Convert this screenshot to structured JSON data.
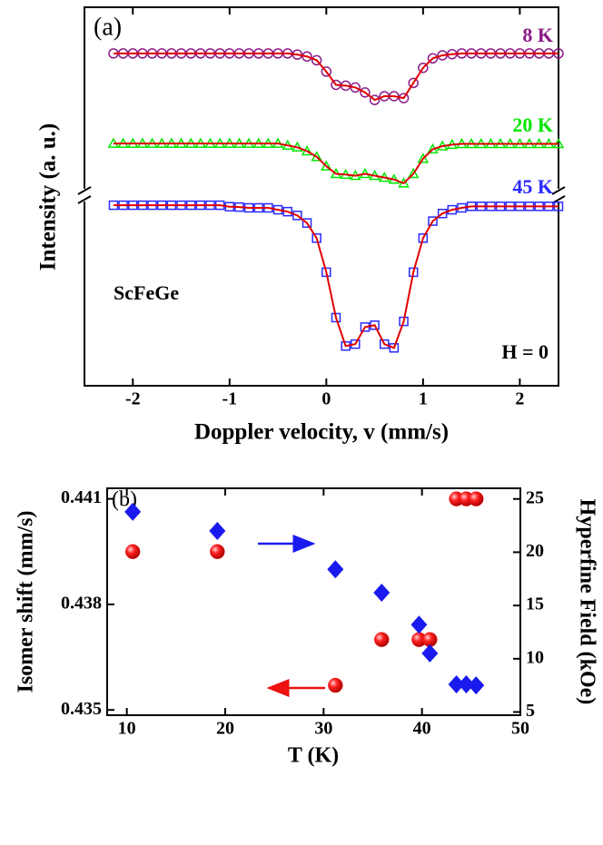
{
  "chart_data": [
    {
      "type": "line",
      "title": "(a)",
      "xlabel": "Doppler velocity, v (mm/s)",
      "ylabel": "Intensity (a. u.)",
      "x": [
        -2.2,
        -2.1,
        -2.0,
        -1.9,
        -1.8,
        -1.7,
        -1.6,
        -1.5,
        -1.4,
        -1.3,
        -1.2,
        -1.1,
        -1.0,
        -0.9,
        -0.8,
        -0.7,
        -0.6,
        -0.5,
        -0.4,
        -0.3,
        -0.2,
        -0.1,
        0.0,
        0.1,
        0.2,
        0.3,
        0.4,
        0.5,
        0.6,
        0.7,
        0.8,
        0.9,
        1.0,
        1.1,
        1.2,
        1.3,
        1.4,
        1.5,
        1.6,
        1.7,
        1.8,
        1.9,
        2.0,
        2.1,
        2.2,
        2.3,
        2.4
      ],
      "series": [
        {
          "name": "8 K",
          "color": "#8b1a89",
          "marker": "circle",
          "values": [
            87.8,
            87.8,
            87.8,
            87.8,
            87.8,
            87.8,
            87.8,
            87.8,
            87.8,
            87.8,
            87.8,
            87.8,
            87.8,
            87.8,
            87.8,
            87.8,
            87.8,
            87.8,
            87.8,
            87.5,
            87,
            86,
            83,
            79.5,
            79.3,
            78.8,
            77.5,
            75.5,
            76.5,
            76.5,
            76,
            80,
            84,
            86.5,
            87.3,
            87.6,
            87.8,
            87.8,
            87.8,
            87.8,
            87.8,
            87.8,
            87.8,
            87.8,
            87.8,
            87.8,
            87.8
          ]
        },
        {
          "name": "20 K",
          "color": "#00e600",
          "marker": "triangle",
          "values": [
            64,
            64,
            64,
            64,
            64,
            64,
            64,
            64,
            64,
            64,
            64,
            64,
            64,
            64,
            64,
            64,
            64,
            64,
            63.5,
            63,
            62,
            60.5,
            58,
            56,
            55.8,
            55.5,
            56,
            55.5,
            55,
            54.5,
            53.5,
            56,
            60,
            62.5,
            63.3,
            63.7,
            63.9,
            63.9,
            63.9,
            63.9,
            63.9,
            63.9,
            63.9,
            63.9,
            63.9,
            63.9,
            63.9
          ]
        },
        {
          "name": "45 K",
          "color": "#2a2aff",
          "marker": "square",
          "values": [
            47.7,
            47.7,
            47.7,
            47.7,
            47.7,
            47.7,
            47.7,
            47.7,
            47.7,
            47.7,
            47.7,
            47.7,
            47.3,
            47.2,
            47,
            47,
            47,
            46.5,
            46,
            45,
            43,
            39,
            30,
            18,
            10.5,
            11,
            15.5,
            16,
            11,
            10,
            17,
            30,
            39,
            43.5,
            45.5,
            46.5,
            47,
            47.4,
            47.4,
            47.4,
            47.4,
            47.4,
            47.4,
            47.4,
            47.4,
            47.4,
            47.4
          ]
        }
      ],
      "fit_color": "#e00000",
      "annotations": [
        "ScFeGe",
        "H = 0"
      ],
      "xlim": [
        -2.5,
        2.4
      ],
      "xticks": [
        -2,
        -1,
        0,
        1,
        2
      ],
      "ylim": [
        0,
        100
      ]
    },
    {
      "type": "scatter",
      "title": "(b)",
      "xlabel": "T (K)",
      "ylabel": "Isomer shift (mm/s)",
      "y2label": "Hyperfine Field (kOe)",
      "x": [
        10.6,
        19.2,
        31.2,
        35.9,
        39.7,
        40.8,
        43.5,
        44.5,
        45.5
      ],
      "series": [
        {
          "color": "#ee1111",
          "marker": "circle",
          "axis": "y",
          "values": [
            0.4395,
            0.4395,
            0.4357,
            0.437,
            0.437,
            0.437,
            0.441,
            0.441,
            0.441
          ]
        },
        {
          "color": "#1a1aee",
          "marker": "diamond",
          "axis": "y2",
          "values": [
            23.8,
            22.0,
            18.4,
            16.2,
            13.2,
            10.5,
            7.6,
            7.6,
            7.5
          ]
        }
      ],
      "xlim": [
        8,
        50
      ],
      "xticks": [
        10,
        20,
        30,
        40,
        50
      ],
      "ylim": [
        0.43485,
        0.4413
      ],
      "yticks": [
        0.435,
        0.438,
        0.441
      ],
      "y2lim": [
        4.7,
        26
      ],
      "y2ticks": [
        5,
        10,
        15,
        20,
        25
      ]
    }
  ]
}
